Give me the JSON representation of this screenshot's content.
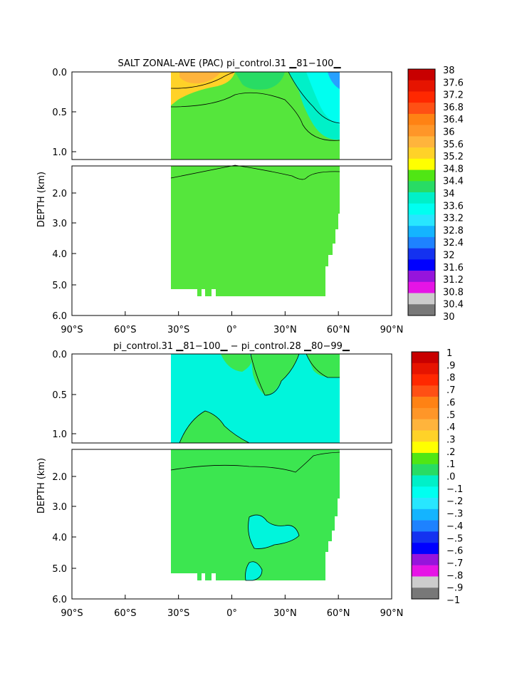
{
  "chart_data": [
    {
      "type": "heatmap",
      "title": "SALT ZONAL-AVE (PAC) pi_control.31 ▁81−100▁",
      "ylabel": "DEPTH (km)",
      "xlabel": "",
      "x_ticks": [
        "90°S",
        "60°S",
        "30°S",
        "0°",
        "30°N",
        "60°N",
        "90°N"
      ],
      "y_ticks_upper": [
        "0.0",
        "0.5",
        "1.0"
      ],
      "y_ticks_lower": [
        "2.0",
        "3.0",
        "4.0",
        "5.0",
        "6.0"
      ],
      "xlim": [
        -90,
        90
      ],
      "ylim": [
        6.0,
        0.0
      ],
      "colorbar": {
        "labels": [
          "38",
          "37.6",
          "37.2",
          "36.8",
          "36.4",
          "36",
          "35.6",
          "35.2",
          "34.8",
          "34.4",
          "34",
          "33.6",
          "33.2",
          "32.8",
          "32.4",
          "32",
          "31.6",
          "31.2",
          "30.8",
          "30.4",
          "30"
        ],
        "colors": [
          "#c80000",
          "#e61400",
          "#ff2800",
          "#ff5014",
          "#ff8214",
          "#ff9628",
          "#ffb43c",
          "#ffd228",
          "#ffff00",
          "#50e614",
          "#28dc64",
          "#00f0c8",
          "#00fff0",
          "#28e6ff",
          "#14b4ff",
          "#1e82ff",
          "#1432f0",
          "#0000ff",
          "#9614dc",
          "#e614e6",
          "#cccccc",
          "#787878"
        ]
      }
    },
    {
      "type": "heatmap",
      "title": "pi_control.31 ▁81−100▁ − pi_control.28 ▁80−99▁",
      "ylabel": "DEPTH (km)",
      "xlabel": "",
      "x_ticks": [
        "90°S",
        "60°S",
        "30°S",
        "0°",
        "30°N",
        "60°N",
        "90°N"
      ],
      "y_ticks_upper": [
        "0.0",
        "0.5",
        "1.0"
      ],
      "y_ticks_lower": [
        "2.0",
        "3.0",
        "4.0",
        "5.0",
        "6.0"
      ],
      "xlim": [
        -90,
        90
      ],
      "ylim": [
        6.0,
        0.0
      ],
      "colorbar": {
        "labels": [
          "1",
          ".9",
          ".8",
          ".7",
          ".6",
          ".5",
          ".4",
          ".3",
          ".2",
          ".1",
          ".0",
          "−.1",
          "−.2",
          "−.3",
          "−.4",
          "−.5",
          "−.6",
          "−.7",
          "−.8",
          "−.9",
          "−1"
        ],
        "colors": [
          "#c80000",
          "#e61400",
          "#ff2800",
          "#ff5014",
          "#ff8214",
          "#ff9628",
          "#ffb43c",
          "#ffd228",
          "#ffff00",
          "#50e614",
          "#28dc64",
          "#00f0c8",
          "#00fff0",
          "#28e6ff",
          "#14b4ff",
          "#1e82ff",
          "#1432f0",
          "#0000ff",
          "#9614dc",
          "#e614e6",
          "#cccccc",
          "#787878"
        ]
      }
    }
  ],
  "colors": {
    "green_salt": "#55e63c",
    "green_diff": "#3ce650",
    "cyan_diff": "#00f5dc",
    "yellow": "#ffd228",
    "blue_high": "#28a0ff"
  }
}
